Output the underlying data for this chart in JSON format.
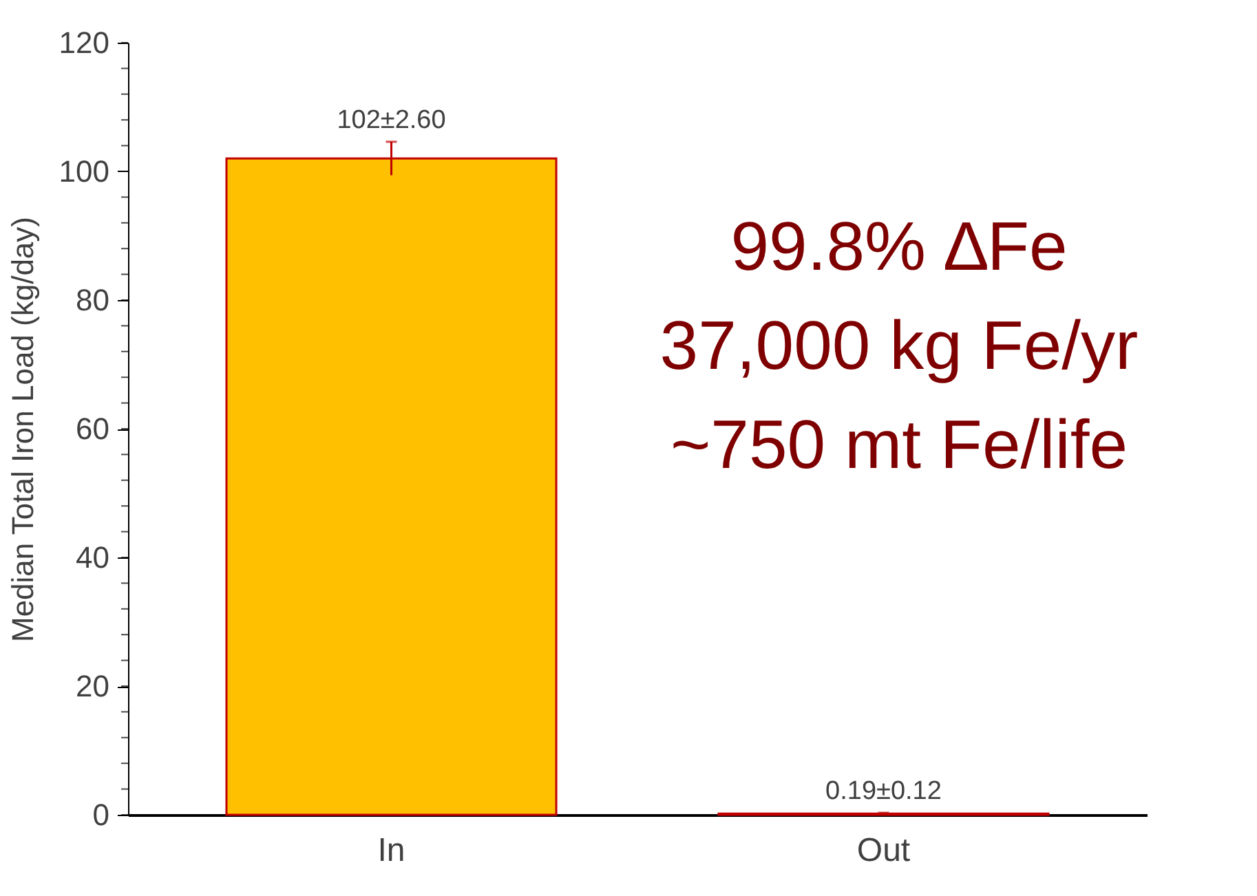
{
  "chart_data": {
    "type": "bar",
    "ylabel": "Median Total Iron Load (kg/day)",
    "categories": [
      "In",
      "Out"
    ],
    "values": [
      102,
      0.19
    ],
    "errors": [
      2.6,
      0.12
    ],
    "color": "#ffc000",
    "value_labels": [
      "102±2.60",
      "0.19±0.12"
    ],
    "ylim": [
      0,
      120
    ],
    "yticks": [
      0,
      20,
      40,
      60,
      80,
      100,
      120
    ],
    "grid": false,
    "annotations": [
      "99.8% ∆Fe",
      "37,000 kg Fe/yr",
      "~750 mt Fe/life"
    ]
  }
}
